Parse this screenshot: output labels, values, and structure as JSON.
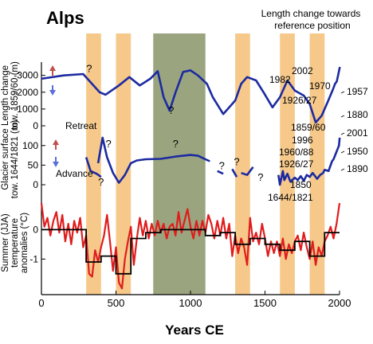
{
  "chart_data": {
    "type": "line",
    "title": "Alps",
    "top_right_title": [
      "Length change towards",
      "reference position"
    ],
    "xlabel": "Years CE",
    "xlim": [
      0,
      2000
    ],
    "x_ticks": [
      0,
      500,
      1000,
      1500,
      2000
    ],
    "colors": {
      "glacier_line": "#1c2aa0",
      "temperature_line": "#e01c1c",
      "temperature_step": "#000000",
      "cold_band": "#f6c98b",
      "warm_band": "#9aa57f",
      "retreat_arrow": "#c0504d",
      "advance_arrow": "#5b6fd6"
    },
    "shaded_periods": [
      {
        "start": 300,
        "end": 400,
        "kind": "cold"
      },
      {
        "start": 500,
        "end": 600,
        "kind": "cold"
      },
      {
        "start": 750,
        "end": 1100,
        "kind": "warm"
      },
      {
        "start": 1300,
        "end": 1400,
        "kind": "cold"
      },
      {
        "start": 1600,
        "end": 1700,
        "kind": "cold"
      },
      {
        "start": 1800,
        "end": 1900,
        "kind": "cold"
      }
    ],
    "panels": [
      {
        "id": "length_change",
        "ylabel": [
          "Length change",
          "tow. 1859/60 (m)"
        ],
        "ylim": [
          0,
          3600
        ],
        "y_ticks": [
          {
            "v": 0,
            "label": "0"
          },
          {
            "v": 1000,
            "label": "-1000"
          },
          {
            "v": 2000,
            "label": "-2000"
          },
          {
            "v": 3000,
            "label": "-3000"
          }
        ],
        "segments": [
          [
            [
              0,
              2800
            ],
            [
              150,
              3000
            ],
            [
              280,
              3080
            ],
            [
              390,
              2000
            ],
            [
              430,
              1850
            ],
            [
              520,
              2400
            ],
            [
              590,
              2900
            ],
            [
              660,
              2400
            ],
            [
              730,
              2800
            ],
            [
              780,
              3250
            ],
            [
              820,
              1700
            ],
            [
              860,
              900
            ],
            [
              900,
              2000
            ],
            [
              950,
              3200
            ],
            [
              1000,
              3300
            ],
            [
              1050,
              3000
            ],
            [
              1110,
              2500
            ],
            [
              1150,
              1700
            ],
            [
              1220,
              700
            ],
            [
              1300,
              1500
            ],
            [
              1340,
              2500
            ],
            [
              1380,
              2900
            ],
            [
              1440,
              2700
            ],
            [
              1490,
              2000
            ],
            [
              1550,
              1100
            ],
            [
              1600,
              1700
            ],
            [
              1650,
              2700
            ],
            [
              1700,
              2100
            ],
            [
              1760,
              1800
            ],
            [
              1800,
              1300
            ],
            [
              1840,
              200
            ],
            [
              1880,
              600
            ],
            [
              1920,
              1400
            ],
            [
              1957,
              2200
            ],
            [
              1970,
              2500
            ],
            [
              1982,
              2650
            ],
            [
              2002,
              3500
            ]
          ]
        ],
        "annotations": [
          {
            "x": 320,
            "y": 3200,
            "text": "?"
          },
          {
            "x": 870,
            "y": 700,
            "text": "?"
          },
          {
            "x": 1880,
            "y": 180,
            "text": "1880"
          },
          {
            "x": 1957,
            "y": 2200,
            "text": "1957"
          },
          {
            "x": 1970,
            "y": 2500,
            "text": "1970"
          },
          {
            "x": 1982,
            "y": 2650,
            "text": "1982"
          },
          {
            "x": 2002,
            "y": 3500,
            "text": "2002"
          },
          {
            "x": 1926,
            "y": 1500,
            "text": "1926/27"
          }
        ]
      },
      {
        "id": "glacier_surface",
        "ylabel": [
          "Glacier surface",
          "tow. 1644/1821 (m)"
        ],
        "ylim": [
          0,
          130
        ],
        "y_ticks": [
          {
            "v": 0,
            "label": "0"
          },
          {
            "v": 50,
            "label": "50"
          },
          {
            "v": 100,
            "label": "100"
          }
        ],
        "retreat_label": "Retreat",
        "advance_label": "Advance",
        "segments": [
          [
            [
              300,
              70
            ],
            [
              330,
              35
            ],
            [
              370,
              28
            ],
            [
              400,
              20
            ]
          ],
          [
            [
              380,
              55
            ],
            [
              410,
              120
            ],
            [
              440,
              70
            ],
            [
              480,
              30
            ],
            [
              520,
              5
            ],
            [
              560,
              25
            ],
            [
              600,
              55
            ],
            [
              640,
              62
            ],
            [
              700,
              65
            ],
            [
              800,
              66
            ],
            [
              900,
              72
            ],
            [
              1000,
              76
            ],
            [
              1050,
              74
            ],
            [
              1100,
              65
            ],
            [
              1130,
              60
            ]
          ],
          [
            [
              1180,
              35
            ],
            [
              1220,
              28
            ]
          ],
          [
            [
              1280,
              40
            ],
            [
              1310,
              20
            ]
          ],
          [
            [
              1340,
              30
            ],
            [
              1380,
              25
            ],
            [
              1420,
              45
            ]
          ],
          [
            [
              1590,
              25
            ],
            [
              1600,
              0
            ],
            [
              1620,
              35
            ],
            [
              1630,
              12
            ],
            [
              1650,
              28
            ],
            [
              1670,
              8
            ],
            [
              1700,
              18
            ],
            [
              1720,
              12
            ],
            [
              1740,
              22
            ],
            [
              1760,
              10
            ],
            [
              1780,
              25
            ],
            [
              1800,
              20
            ],
            [
              1820,
              30
            ],
            [
              1850,
              15
            ],
            [
              1870,
              25
            ],
            [
              1890,
              30
            ],
            [
              1900,
              38
            ],
            [
              1926,
              35
            ],
            [
              1950,
              60
            ],
            [
              1960,
              65
            ],
            [
              1996,
              100
            ],
            [
              2001,
              120
            ]
          ]
        ],
        "annotations": [
          {
            "x": 450,
            "y": 95,
            "text": "?"
          },
          {
            "x": 400,
            "y": -2,
            "text": "?"
          },
          {
            "x": 900,
            "y": 95,
            "text": "?"
          },
          {
            "x": 1210,
            "y": 40,
            "text": "?"
          },
          {
            "x": 1310,
            "y": 50,
            "text": "?"
          },
          {
            "x": 1470,
            "y": 10,
            "text": "?"
          },
          {
            "x": 1900,
            "y": 38,
            "text": "1890"
          },
          {
            "x": 1950,
            "y": 60,
            "text": "1950"
          },
          {
            "x": 2001,
            "y": 120,
            "text": "2001"
          },
          {
            "x": 1926,
            "y": 35,
            "text": "1926/27"
          },
          {
            "x": 1960,
            "y": 65,
            "text": "1960/88"
          },
          {
            "x": 1996,
            "y": 100,
            "text": "1996"
          },
          {
            "x": 1859,
            "y": 115,
            "text": "1859/60"
          },
          {
            "x": 1850,
            "y": 15,
            "text": "1850"
          },
          {
            "x": 1821,
            "y": 5,
            "text": "1644/1821"
          }
        ]
      },
      {
        "id": "temperature",
        "ylabel": [
          "Summer (JJA)",
          "temperature",
          "anomalies (°C)"
        ],
        "ylim": [
          -2.1,
          1.2
        ],
        "y_ticks": [
          {
            "v": 0,
            "label": "0"
          },
          {
            "v": -1,
            "label": "-1"
          }
        ],
        "red_line": [
          [
            0,
            0.9
          ],
          [
            20,
            0.1
          ],
          [
            40,
            0.4
          ],
          [
            60,
            -0.2
          ],
          [
            80,
            0.3
          ],
          [
            100,
            0.6
          ],
          [
            120,
            -0.1
          ],
          [
            140,
            0.5
          ],
          [
            160,
            -0.4
          ],
          [
            180,
            0.2
          ],
          [
            200,
            -0.5
          ],
          [
            220,
            0.3
          ],
          [
            240,
            -0.1
          ],
          [
            260,
            0.4
          ],
          [
            280,
            -0.6
          ],
          [
            300,
            -0.2
          ],
          [
            320,
            -1.5
          ],
          [
            340,
            -1.6
          ],
          [
            360,
            -0.7
          ],
          [
            380,
            -1.1
          ],
          [
            400,
            -0.6
          ],
          [
            420,
            -0.2
          ],
          [
            440,
            0.5
          ],
          [
            460,
            -0.4
          ],
          [
            480,
            -1.4
          ],
          [
            500,
            -0.6
          ],
          [
            520,
            -1.8
          ],
          [
            540,
            -2.0
          ],
          [
            560,
            -1.0
          ],
          [
            580,
            -0.4
          ],
          [
            600,
            0.1
          ],
          [
            620,
            -1.2
          ],
          [
            640,
            -0.3
          ],
          [
            660,
            0.4
          ],
          [
            680,
            -0.2
          ],
          [
            700,
            0.3
          ],
          [
            720,
            -0.3
          ],
          [
            740,
            0.2
          ],
          [
            760,
            -0.2
          ],
          [
            780,
            0.3
          ],
          [
            800,
            -0.1
          ],
          [
            820,
            0.2
          ],
          [
            840,
            -0.3
          ],
          [
            860,
            0.1
          ],
          [
            880,
            0.2
          ],
          [
            900,
            -0.2
          ],
          [
            920,
            0.6
          ],
          [
            940,
            -0.1
          ],
          [
            960,
            0.3
          ],
          [
            980,
            0.7
          ],
          [
            1000,
            0.1
          ],
          [
            1020,
            -0.3
          ],
          [
            1040,
            0.3
          ],
          [
            1060,
            -0.2
          ],
          [
            1080,
            0.3
          ],
          [
            1100,
            -0.1
          ],
          [
            1120,
            0.5
          ],
          [
            1140,
            0.2
          ],
          [
            1160,
            -0.3
          ],
          [
            1180,
            0.3
          ],
          [
            1200,
            -0.2
          ],
          [
            1220,
            0.4
          ],
          [
            1240,
            -0.3
          ],
          [
            1260,
            0.2
          ],
          [
            1280,
            -0.9
          ],
          [
            1300,
            -0.2
          ],
          [
            1320,
            -0.8
          ],
          [
            1340,
            -0.3
          ],
          [
            1360,
            -0.6
          ],
          [
            1380,
            -1.2
          ],
          [
            1400,
            0.4
          ],
          [
            1420,
            -0.4
          ],
          [
            1440,
            -0.1
          ],
          [
            1460,
            -0.5
          ],
          [
            1480,
            0.2
          ],
          [
            1500,
            -0.3
          ],
          [
            1520,
            -0.9
          ],
          [
            1540,
            -0.4
          ],
          [
            1560,
            -0.8
          ],
          [
            1580,
            -0.4
          ],
          [
            1600,
            -0.9
          ],
          [
            1620,
            -0.3
          ],
          [
            1640,
            -1.0
          ],
          [
            1660,
            -0.5
          ],
          [
            1680,
            -0.8
          ],
          [
            1700,
            -0.4
          ],
          [
            1720,
            -0.2
          ],
          [
            1740,
            -0.7
          ],
          [
            1760,
            -0.1
          ],
          [
            1780,
            -0.6
          ],
          [
            1800,
            -1.0
          ],
          [
            1820,
            -0.4
          ],
          [
            1840,
            -1.2
          ],
          [
            1860,
            -0.6
          ],
          [
            1880,
            -0.9
          ],
          [
            1900,
            -0.4
          ],
          [
            1920,
            -0.2
          ],
          [
            1940,
            0.1
          ],
          [
            1960,
            -0.3
          ],
          [
            1980,
            0.2
          ],
          [
            2000,
            0.9
          ]
        ],
        "black_step": [
          [
            0,
            0.0
          ],
          [
            300,
            0.0
          ],
          [
            300,
            -1.1
          ],
          [
            400,
            -1.1
          ],
          [
            400,
            -0.9
          ],
          [
            500,
            -0.9
          ],
          [
            500,
            -1.5
          ],
          [
            600,
            -1.5
          ],
          [
            600,
            -0.3
          ],
          [
            700,
            -0.3
          ],
          [
            700,
            -0.1
          ],
          [
            800,
            -0.1
          ],
          [
            800,
            0.0
          ],
          [
            1100,
            0.0
          ],
          [
            1100,
            -0.2
          ],
          [
            1200,
            -0.2
          ],
          [
            1200,
            -0.1
          ],
          [
            1300,
            -0.1
          ],
          [
            1300,
            -0.5
          ],
          [
            1400,
            -0.5
          ],
          [
            1400,
            -0.3
          ],
          [
            1500,
            -0.3
          ],
          [
            1500,
            -0.5
          ],
          [
            1600,
            -0.5
          ],
          [
            1600,
            -0.7
          ],
          [
            1700,
            -0.7
          ],
          [
            1700,
            -0.4
          ],
          [
            1800,
            -0.4
          ],
          [
            1800,
            -0.9
          ],
          [
            1900,
            -0.9
          ],
          [
            1900,
            -0.1
          ],
          [
            2000,
            -0.1
          ]
        ]
      }
    ]
  }
}
